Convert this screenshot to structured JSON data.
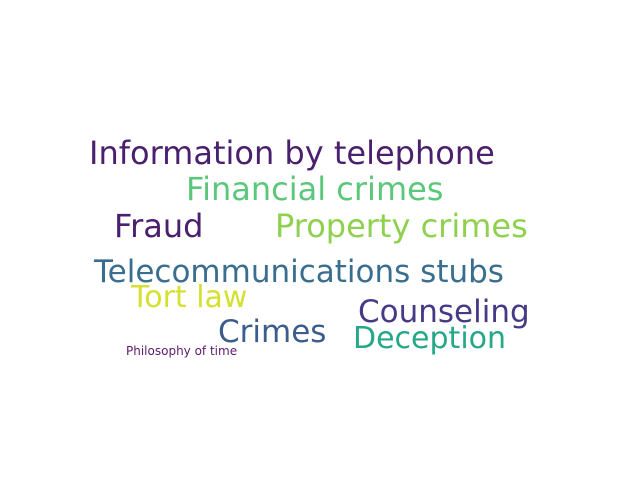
{
  "word_cloud": {
    "words": [
      {
        "text": "Information by telephone",
        "color": "#4a1f6e"
      },
      {
        "text": "Financial crimes",
        "color": "#5bc77a"
      },
      {
        "text": "Fraud",
        "color": "#4a1f6e"
      },
      {
        "text": "Property crimes",
        "color": "#8fd14f"
      },
      {
        "text": "Telecommunications stubs",
        "color": "#3a6e8f"
      },
      {
        "text": "Tort law",
        "color": "#d6e030"
      },
      {
        "text": "Counseling",
        "color": "#453a85"
      },
      {
        "text": "Crimes",
        "color": "#3b5c8c"
      },
      {
        "text": "Deception",
        "color": "#25a888"
      },
      {
        "text": "Philosophy of time",
        "color": "#5c1a6b"
      }
    ]
  }
}
